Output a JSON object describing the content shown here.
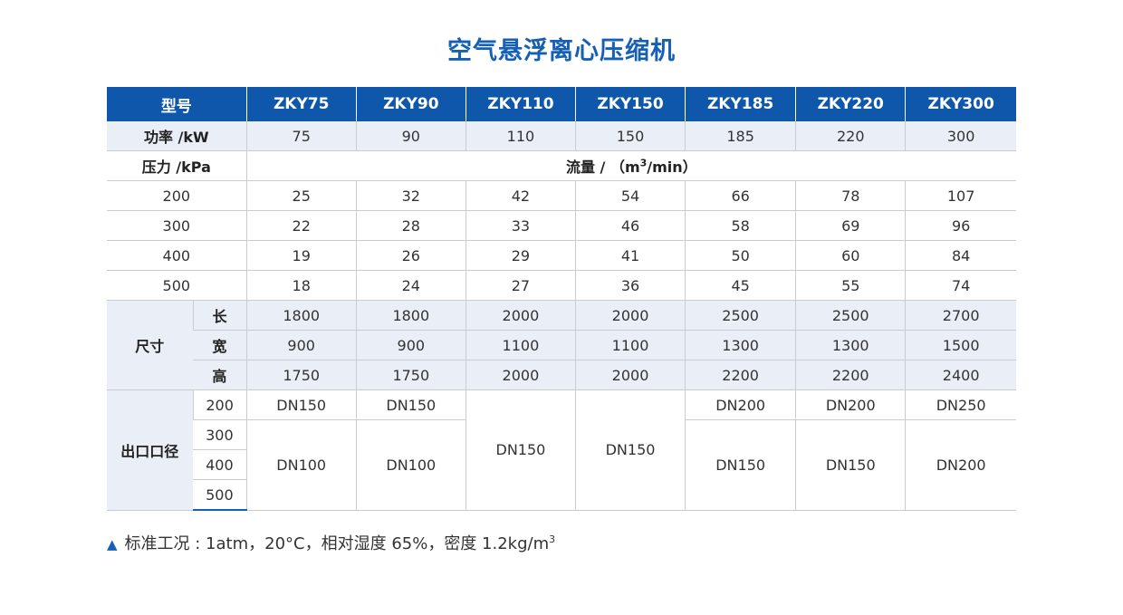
{
  "title": "空气悬浮离心压缩机",
  "header": {
    "model_label": "型号",
    "models": [
      "ZKY75",
      "ZKY90",
      "ZKY110",
      "ZKY150",
      "ZKY185",
      "ZKY220",
      "ZKY300"
    ]
  },
  "power": {
    "label": "功率 /kW",
    "values": [
      "75",
      "90",
      "110",
      "150",
      "185",
      "220",
      "300"
    ]
  },
  "pressure": {
    "label": "压力 /kPa",
    "flow_label_prefix": "流量 / （m",
    "flow_label_sup": "3",
    "flow_label_suffix": "/min）"
  },
  "flow_rows": [
    {
      "pressure": "200",
      "values": [
        "25",
        "32",
        "42",
        "54",
        "66",
        "78",
        "107"
      ]
    },
    {
      "pressure": "300",
      "values": [
        "22",
        "28",
        "33",
        "46",
        "58",
        "69",
        "96"
      ]
    },
    {
      "pressure": "400",
      "values": [
        "19",
        "26",
        "29",
        "41",
        "50",
        "60",
        "84"
      ]
    },
    {
      "pressure": "500",
      "values": [
        "18",
        "24",
        "27",
        "36",
        "45",
        "55",
        "74"
      ]
    }
  ],
  "dimensions": {
    "label": "尺寸",
    "rows": [
      {
        "label": "长",
        "values": [
          "1800",
          "1800",
          "2000",
          "2000",
          "2500",
          "2500",
          "2700"
        ]
      },
      {
        "label": "宽",
        "values": [
          "900",
          "900",
          "1100",
          "1100",
          "1300",
          "1300",
          "1500"
        ]
      },
      {
        "label": "高",
        "values": [
          "1750",
          "1750",
          "2000",
          "2000",
          "2200",
          "2200",
          "2400"
        ]
      }
    ]
  },
  "outlet": {
    "label": "出口口径",
    "pressures": [
      "200",
      "300",
      "400",
      "500"
    ],
    "row200": [
      "DN150",
      "DN150",
      "DN200",
      "DN200",
      "DN250"
    ],
    "merged_mid": [
      "DN150",
      "DN150"
    ],
    "row_rest": [
      "DN100",
      "DN100",
      "DN150",
      "DN150",
      "DN200"
    ]
  },
  "note": {
    "marker": "▲",
    "text": "标准工况 : 1atm，20°C，相对湿度 65%，密度 1.2kg/m",
    "sup": "3"
  }
}
